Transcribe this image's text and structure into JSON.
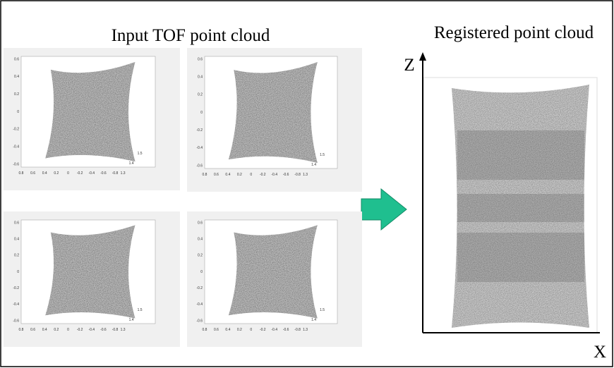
{
  "left_title": "Input TOF point cloud",
  "right_title": "Registered point cloud",
  "axis_z": "Z",
  "axis_x": "X",
  "panels": [
    {
      "y_ticks": [
        "0.6",
        "0.4",
        "0.2",
        "0",
        "-0.2",
        "-0.4",
        "-0.6"
      ],
      "x_ticks": [
        "0.8",
        "0.6",
        "0.4",
        "0.2",
        "0",
        "-0.2",
        "-0.4",
        "-0.6",
        "-0.8"
      ],
      "depth_ticks": [
        "1.3",
        "1.4",
        "1.5"
      ]
    },
    {
      "y_ticks": [
        "0.6",
        "0.4",
        "0.2",
        "0",
        "-0.2",
        "-0.4",
        "-0.6"
      ],
      "x_ticks": [
        "0.8",
        "0.6",
        "0.4",
        "0.2",
        "0",
        "-0.2",
        "-0.4",
        "-0.6",
        "-0.8"
      ],
      "depth_ticks": [
        "1.3",
        "1.4",
        "1.5"
      ]
    },
    {
      "y_ticks": [
        "0.6",
        "0.4",
        "0.2",
        "0",
        "-0.2",
        "-0.4",
        "-0.6"
      ],
      "x_ticks": [
        "0.8",
        "0.6",
        "0.4",
        "0.2",
        "0",
        "-0.2",
        "-0.4",
        "-0.6",
        "-0.8"
      ],
      "depth_ticks": [
        "1.3",
        "1.4",
        "1.5"
      ]
    },
    {
      "y_ticks": [
        "0.6",
        "0.4",
        "0.2",
        "0",
        "-0.2",
        "-0.4",
        "-0.6"
      ],
      "x_ticks": [
        "0.8",
        "0.6",
        "0.4",
        "0.2",
        "0",
        "-0.2",
        "-0.4",
        "-0.6",
        "-0.8"
      ],
      "depth_ticks": [
        "1.3",
        "1.4",
        "1.5"
      ]
    }
  ]
}
